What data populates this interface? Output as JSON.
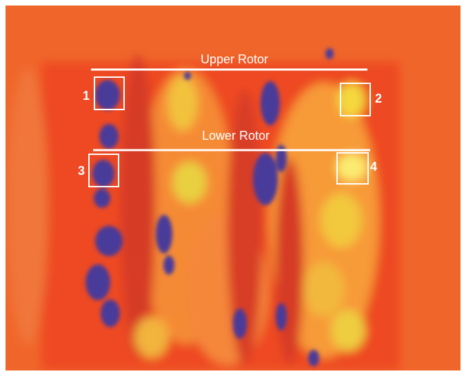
{
  "lines": [
    {
      "label": "Upper Rotor"
    },
    {
      "label": "Lower Rotor"
    }
  ],
  "boxes": [
    {
      "label": "1"
    },
    {
      "label": "2"
    },
    {
      "label": "3"
    },
    {
      "label": "4"
    }
  ]
}
